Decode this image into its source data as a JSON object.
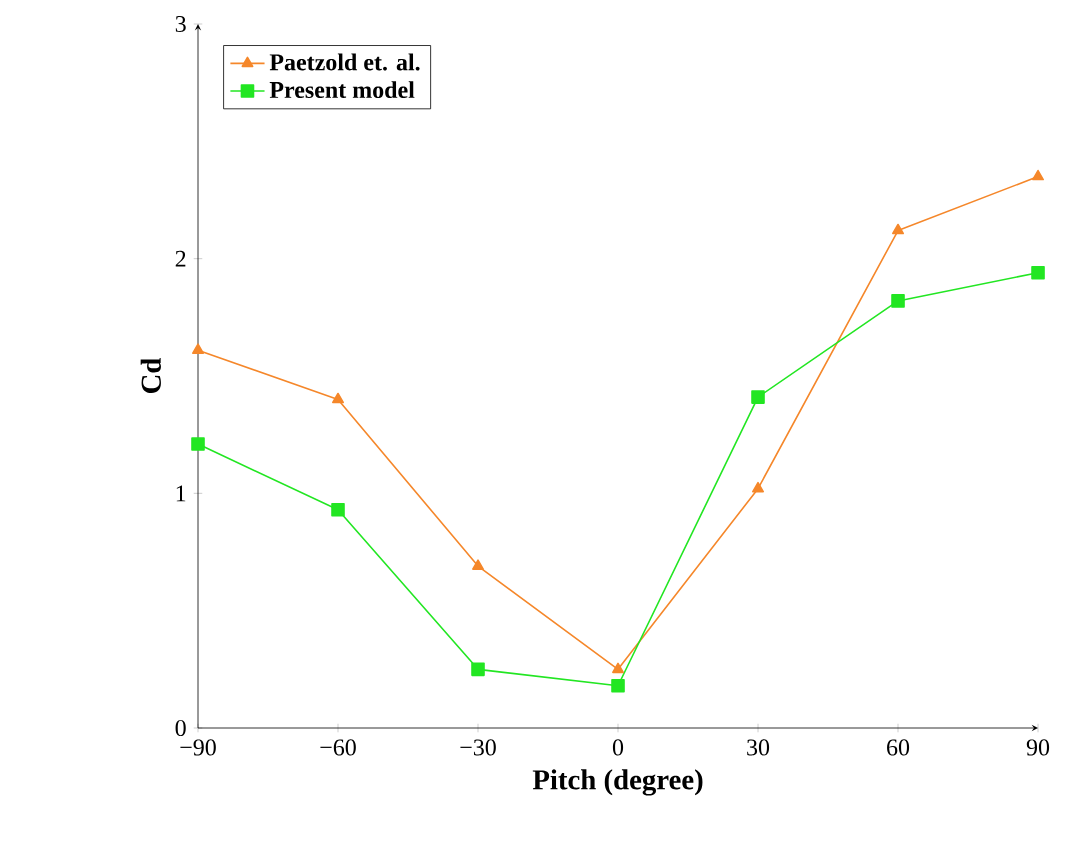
{
  "chart_data": {
    "type": "line",
    "xlabel": "Pitch (degree)",
    "ylabel": "Cd",
    "x": [
      -90,
      -60,
      -30,
      0,
      30,
      60,
      90
    ],
    "series": [
      {
        "name": "Paetzold et. al.",
        "color": "#f5872a",
        "marker": "triangle",
        "values": [
          1.61,
          1.4,
          0.69,
          0.25,
          1.02,
          2.12,
          2.35
        ]
      },
      {
        "name": "Present model",
        "color": "#22e622",
        "marker": "square",
        "values": [
          1.21,
          0.93,
          0.25,
          0.18,
          1.41,
          1.82,
          1.94
        ]
      }
    ],
    "xlim": [
      -90,
      90
    ],
    "ylim": [
      0,
      3
    ],
    "xticks": [
      {
        "value": -90,
        "label": "−90"
      },
      {
        "value": -60,
        "label": "−60"
      },
      {
        "value": -30,
        "label": "−30"
      },
      0,
      30,
      60,
      90
    ],
    "yticks": [
      0,
      1,
      2,
      3
    ],
    "legend": "top left"
  }
}
